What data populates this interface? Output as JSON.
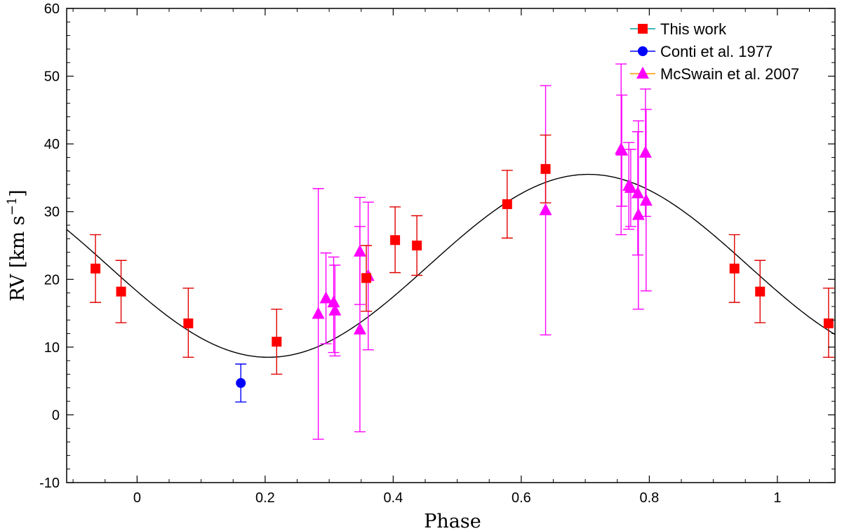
{
  "chart_data": {
    "type": "scatter",
    "xlabel": "Phase",
    "ylabel_main": "RV [km s",
    "ylabel_sup": "−1",
    "ylabel_tail": "]",
    "xlim": [
      -0.11,
      1.09
    ],
    "ylim": [
      -10,
      60
    ],
    "xticks": [
      0,
      0.2,
      0.4,
      0.6,
      0.8,
      1
    ],
    "xtick_labels": [
      "0",
      "0.2",
      "0.4",
      "0.6",
      "0.8",
      "1"
    ],
    "yticks": [
      -10,
      0,
      10,
      20,
      30,
      40,
      50,
      60
    ],
    "ytick_labels": [
      "-10",
      "0",
      "10",
      "20",
      "30",
      "40",
      "50",
      "60"
    ],
    "legend_position": "top-right",
    "series": [
      {
        "name": "This work",
        "marker": "square",
        "color": "#ff0000",
        "errcolor": "#e00000",
        "points": [
          {
            "x": -0.065,
            "y": 21.6,
            "lo": 16.6,
            "hi": 26.6
          },
          {
            "x": -0.025,
            "y": 18.2,
            "lo": 13.6,
            "hi": 22.8
          },
          {
            "x": 0.08,
            "y": 13.5,
            "lo": 8.5,
            "hi": 18.7
          },
          {
            "x": 0.218,
            "y": 10.8,
            "lo": 6.0,
            "hi": 15.6
          },
          {
            "x": 0.358,
            "y": 20.2,
            "lo": 15.3,
            "hi": 25.0
          },
          {
            "x": 0.403,
            "y": 25.8,
            "lo": 21.0,
            "hi": 30.7
          },
          {
            "x": 0.437,
            "y": 25.0,
            "lo": 20.6,
            "hi": 29.4
          },
          {
            "x": 0.578,
            "y": 31.1,
            "lo": 26.1,
            "hi": 36.1
          },
          {
            "x": 0.638,
            "y": 36.3,
            "lo": 31.3,
            "hi": 41.3
          },
          {
            "x": 0.933,
            "y": 21.6,
            "lo": 16.6,
            "hi": 26.6
          },
          {
            "x": 0.973,
            "y": 18.2,
            "lo": 13.6,
            "hi": 22.8
          },
          {
            "x": 1.08,
            "y": 13.5,
            "lo": 8.5,
            "hi": 18.7
          }
        ]
      },
      {
        "name": "Conti et al. 1977",
        "marker": "circle",
        "color": "#0000ff",
        "errcolor": "#0000ff",
        "points": [
          {
            "x": 0.162,
            "y": 4.7,
            "lo": 1.9,
            "hi": 7.5
          }
        ]
      },
      {
        "name": "McSwain et al. 2007",
        "marker": "triangle",
        "color": "#ff00ff",
        "errcolor": "#ff00ff",
        "points": [
          {
            "x": 0.283,
            "y": 14.9,
            "lo": -3.6,
            "hi": 33.4
          },
          {
            "x": 0.295,
            "y": 17.2,
            "lo": 10.5,
            "hi": 23.9
          },
          {
            "x": 0.307,
            "y": 16.6,
            "lo": 9.2,
            "hi": 23.3
          },
          {
            "x": 0.309,
            "y": 15.4,
            "lo": 8.7,
            "hi": 22.1
          },
          {
            "x": 0.348,
            "y": 24.1,
            "lo": 16.3,
            "hi": 32.1
          },
          {
            "x": 0.348,
            "y": 12.6,
            "lo": -2.5,
            "hi": 27.8
          },
          {
            "x": 0.361,
            "y": 20.5,
            "lo": 9.6,
            "hi": 31.4
          },
          {
            "x": 0.638,
            "y": 30.2,
            "lo": 11.8,
            "hi": 48.6
          },
          {
            "x": 0.756,
            "y": 39.2,
            "lo": 26.6,
            "hi": 51.8
          },
          {
            "x": 0.757,
            "y": 39.0,
            "lo": 30.8,
            "hi": 47.2
          },
          {
            "x": 0.768,
            "y": 33.8,
            "lo": 27.4,
            "hi": 40.2
          },
          {
            "x": 0.771,
            "y": 33.5,
            "lo": 27.8,
            "hi": 39.2
          },
          {
            "x": 0.782,
            "y": 32.7,
            "lo": 23.6,
            "hi": 41.8
          },
          {
            "x": 0.783,
            "y": 29.5,
            "lo": 15.6,
            "hi": 43.4
          },
          {
            "x": 0.794,
            "y": 38.7,
            "lo": 29.3,
            "hi": 48.1
          },
          {
            "x": 0.795,
            "y": 31.6,
            "lo": 18.3,
            "hi": 45.1
          }
        ]
      }
    ],
    "model_curve": {
      "color": "#000000",
      "mean": 22.0,
      "amplitude": 13.5,
      "max_phase": 0.705
    }
  }
}
